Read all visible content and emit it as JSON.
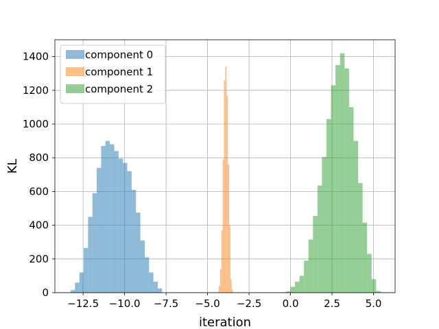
{
  "chart_data": {
    "type": "bar",
    "subtype": "histogram",
    "title": "",
    "xlabel": "iteration",
    "ylabel": "KL",
    "xlim": [
      -14.2,
      6.3
    ],
    "ylim": [
      0,
      1500
    ],
    "grid": true,
    "legend_position": "top-left",
    "xticks": [
      -12.5,
      -10.0,
      -7.5,
      -5.0,
      -2.5,
      0.0,
      2.5,
      5.0
    ],
    "xtick_labels": [
      "−12.5",
      "−10.0",
      "−7.5",
      "−5.0",
      "−2.5",
      "0.0",
      "2.5",
      "5.0"
    ],
    "yticks": [
      0,
      200,
      400,
      600,
      800,
      1000,
      1200,
      1400
    ],
    "ytick_labels": [
      "0",
      "200",
      "400",
      "600",
      "800",
      "1000",
      "1200",
      "1400"
    ],
    "series": [
      {
        "name": "component 0",
        "color": "#1f77b4",
        "alpha": 0.5,
        "bin_start": -13.25,
        "bin_width": 0.2625,
        "counts": [
          15,
          60,
          120,
          265,
          450,
          590,
          740,
          870,
          900,
          880,
          840,
          795,
          770,
          720,
          610,
          475,
          310,
          210,
          120,
          65,
          25
        ]
      },
      {
        "name": "component 1",
        "color": "#ff7f0e",
        "alpha": 0.5,
        "bin_start": -4.4,
        "bin_width": 0.0775,
        "counts": [
          5,
          40,
          140,
          370,
          790,
          1260,
          1340,
          1170,
          760,
          400,
          80,
          15
        ]
      },
      {
        "name": "component 2",
        "color": "#2ca02c",
        "alpha": 0.5,
        "bin_start": -0.55,
        "bin_width": 0.2717,
        "counts": [
          3,
          8,
          35,
          65,
          100,
          190,
          315,
          455,
          635,
          805,
          1030,
          1230,
          1350,
          1420,
          1330,
          1100,
          900,
          650,
          415,
          230,
          80,
          10,
          2
        ]
      }
    ]
  }
}
